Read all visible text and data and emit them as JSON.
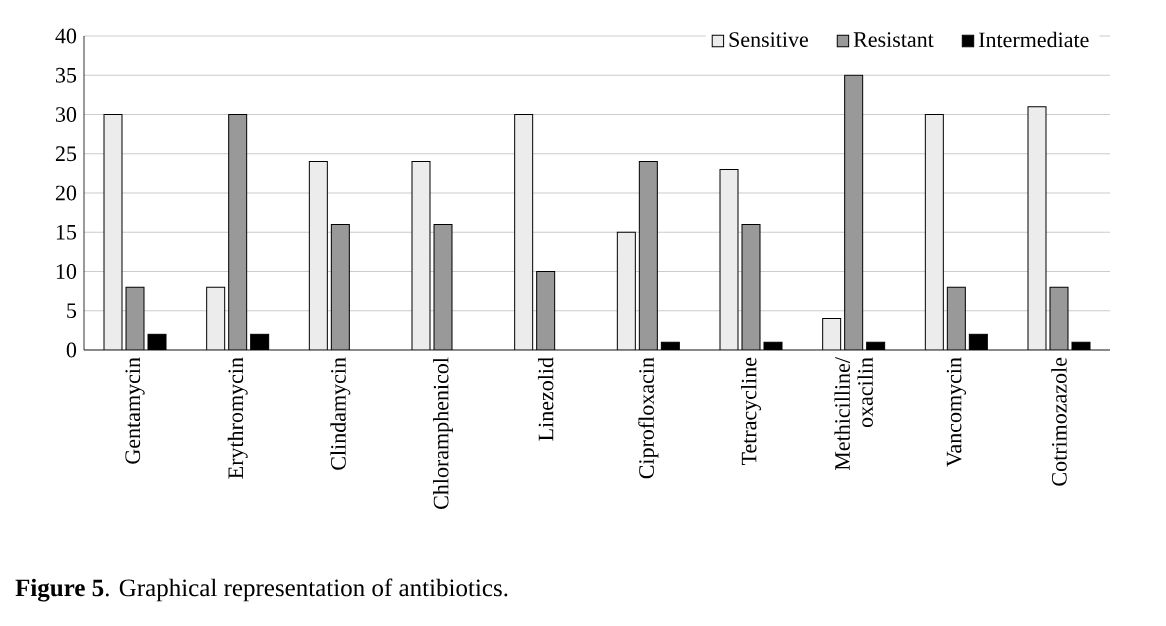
{
  "chart_data": {
    "type": "bar",
    "categories": [
      "Gentamycin",
      "Erythromycin",
      "Clindamycin",
      "Chloramphenicol",
      "Linezolid",
      "Ciprofloxacin",
      "Tetracycline",
      "Methicilline/ oxacilin",
      "Vancomycin",
      "Cotrimozazole"
    ],
    "series": [
      {
        "name": "Sensitive",
        "color": "#ececec",
        "values": [
          30,
          8,
          24,
          24,
          30,
          15,
          23,
          4,
          30,
          31
        ]
      },
      {
        "name": "Resistant",
        "color": "#999999",
        "values": [
          8,
          30,
          16,
          16,
          10,
          24,
          16,
          35,
          8,
          8
        ]
      },
      {
        "name": "Intermediate",
        "color": "#000000",
        "values": [
          2,
          2,
          null,
          null,
          null,
          1,
          1,
          1,
          2,
          1
        ]
      }
    ],
    "ylim": [
      0,
      40
    ],
    "yticks": [
      0,
      5,
      10,
      15,
      20,
      25,
      30,
      35,
      40
    ],
    "grid": "y",
    "legend": "top right",
    "annotations": [
      "**Figure 5**. Graphical representation of antibiotics."
    ]
  }
}
